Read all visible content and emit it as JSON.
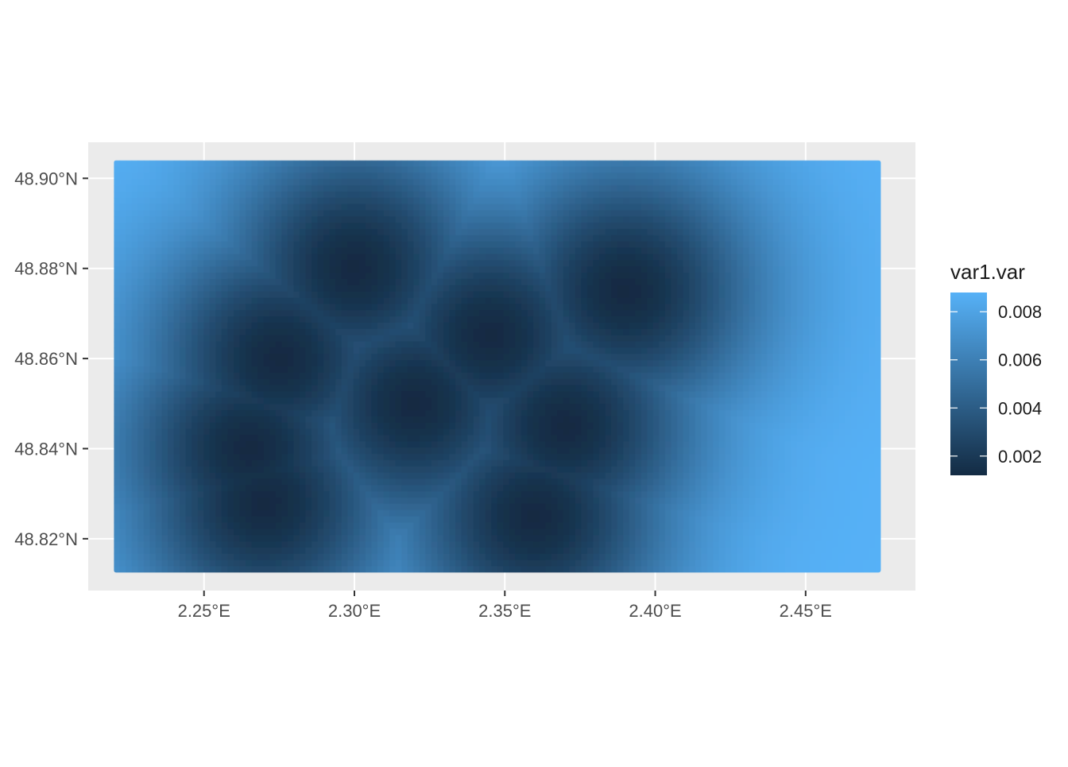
{
  "chart_data": {
    "type": "heatmap",
    "title": "",
    "xlabel": "",
    "ylabel": "",
    "x_range": [
      2.22,
      2.475
    ],
    "y_range": [
      48.8125,
      48.904
    ],
    "xlim": [
      2.2115,
      2.4865
    ],
    "ylim": [
      48.8085,
      48.908
    ],
    "x_ticks": [
      2.25,
      2.3,
      2.35,
      2.4,
      2.45
    ],
    "x_tick_labels": [
      "2.25°E",
      "2.30°E",
      "2.35°E",
      "2.40°E",
      "2.45°E"
    ],
    "y_ticks": [
      48.82,
      48.84,
      48.86,
      48.88,
      48.9
    ],
    "y_tick_labels": [
      "48.82°N",
      "48.84°N",
      "48.86°N",
      "48.88°N",
      "48.90°N"
    ],
    "grid": true,
    "legend": {
      "title": "var1.var",
      "placement": "right",
      "range": [
        0.0012,
        0.0088
      ],
      "breaks": [
        0.002,
        0.004,
        0.006,
        0.008
      ],
      "labels": [
        "0.002",
        "0.004",
        "0.006",
        "0.008"
      ],
      "color_low": "#132B43",
      "color_high": "#56B1F7"
    },
    "field": {
      "description_units": "variance",
      "min_value": 0.0012,
      "max_value": 0.0088,
      "low_variance_centers": [
        {
          "x": 2.345,
          "y": 48.865
        },
        {
          "x": 2.32,
          "y": 48.85
        },
        {
          "x": 2.37,
          "y": 48.845
        },
        {
          "x": 2.36,
          "y": 48.825
        },
        {
          "x": 2.3,
          "y": 48.88
        },
        {
          "x": 2.39,
          "y": 48.875
        },
        {
          "x": 2.265,
          "y": 48.84
        },
        {
          "x": 2.275,
          "y": 48.86
        },
        {
          "x": 2.27,
          "y": 48.828
        }
      ]
    }
  },
  "colors": {
    "panel_background": "#EBEBEB",
    "grid_major": "#FFFFFF",
    "tick_text": "#4D4D4D"
  }
}
